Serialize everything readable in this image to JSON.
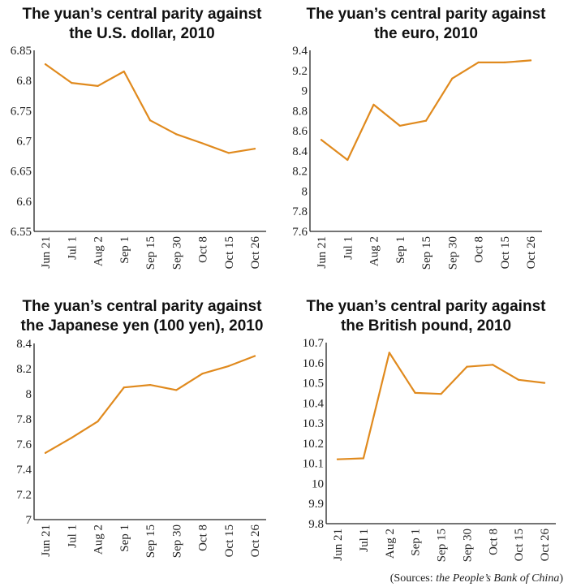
{
  "colors": {
    "series": "#e08a1e",
    "axis": "#222222"
  },
  "chart_data": [
    {
      "type": "line",
      "title_line1": "The yuan’s central parity against",
      "title_line2": "the U.S. dollar, 2010",
      "categories": [
        "Jun 21",
        "Jul 1",
        "Aug 2",
        "Sep 1",
        "Sep 15",
        "Sep 30",
        "Oct 8",
        "Oct 15",
        "Oct 26"
      ],
      "values": [
        6.827,
        6.796,
        6.791,
        6.815,
        6.734,
        6.711,
        6.696,
        6.68,
        6.687
      ],
      "ylim": [
        6.55,
        6.85
      ],
      "yticks": [
        6.55,
        6.6,
        6.65,
        6.7,
        6.75,
        6.8,
        6.85
      ],
      "ytick_labels": [
        "6.55",
        "6.6",
        "6.65",
        "6.7",
        "6.75",
        "6.8",
        "6.85"
      ],
      "grid": false
    },
    {
      "type": "line",
      "title_line1": "The yuan’s central parity against",
      "title_line2": "the euro, 2010",
      "categories": [
        "Jun 21",
        "Jul 1",
        "Aug 2",
        "Sep 1",
        "Sep 15",
        "Sep 30",
        "Oct 8",
        "Oct 15",
        "Oct 26"
      ],
      "values": [
        8.51,
        8.31,
        8.86,
        8.65,
        8.7,
        9.12,
        9.28,
        9.28,
        9.3
      ],
      "ylim": [
        7.6,
        9.4
      ],
      "yticks": [
        7.6,
        7.8,
        8,
        8.2,
        8.4,
        8.6,
        8.8,
        9,
        9.2,
        9.4
      ],
      "ytick_labels": [
        "7.6",
        "7.8",
        "8",
        "8.2",
        "8.4",
        "8.6",
        "8.8",
        "9",
        "9.2",
        "9.4"
      ],
      "grid": false
    },
    {
      "type": "line",
      "title_line1": "The yuan’s central parity against",
      "title_line2": "the Japanese yen (100 yen), 2010",
      "categories": [
        "Jun 21",
        "Jul 1",
        "Aug 2",
        "Sep 1",
        "Sep 15",
        "Sep 30",
        "Oct 8",
        "Oct 15",
        "Oct 26"
      ],
      "values": [
        7.53,
        7.65,
        7.78,
        8.05,
        8.07,
        8.03,
        8.16,
        8.22,
        8.3
      ],
      "ylim": [
        7,
        8.4
      ],
      "yticks": [
        7,
        7.2,
        7.4,
        7.6,
        7.8,
        8,
        8.2,
        8.4
      ],
      "ytick_labels": [
        "7",
        "7.2",
        "7.4",
        "7.6",
        "7.8",
        "8",
        "8.2",
        "8.4"
      ],
      "grid": false
    },
    {
      "type": "line",
      "title_line1": "The yuan’s central parity against",
      "title_line2": "the British pound, 2010",
      "categories": [
        "Jun 21",
        "Jul 1",
        "Aug 2",
        "Sep 1",
        "Sep 15",
        "Sep 30",
        "Oct 8",
        "Oct 15",
        "Oct 26"
      ],
      "values": [
        10.12,
        10.125,
        10.65,
        10.45,
        10.445,
        10.58,
        10.59,
        10.515,
        10.5
      ],
      "ylim": [
        9.8,
        10.7
      ],
      "yticks": [
        9.8,
        9.9,
        10,
        10.1,
        10.2,
        10.3,
        10.4,
        10.5,
        10.6,
        10.7
      ],
      "ytick_labels": [
        "9.8",
        "9.9",
        "10",
        "10.1",
        "10.2",
        "10.3",
        "10.4",
        "10.5",
        "10.6",
        "10.7"
      ],
      "grid": false
    }
  ],
  "source": {
    "prefix": "(Sources: ",
    "name": "the People’s Bank of China",
    "suffix": ")"
  }
}
